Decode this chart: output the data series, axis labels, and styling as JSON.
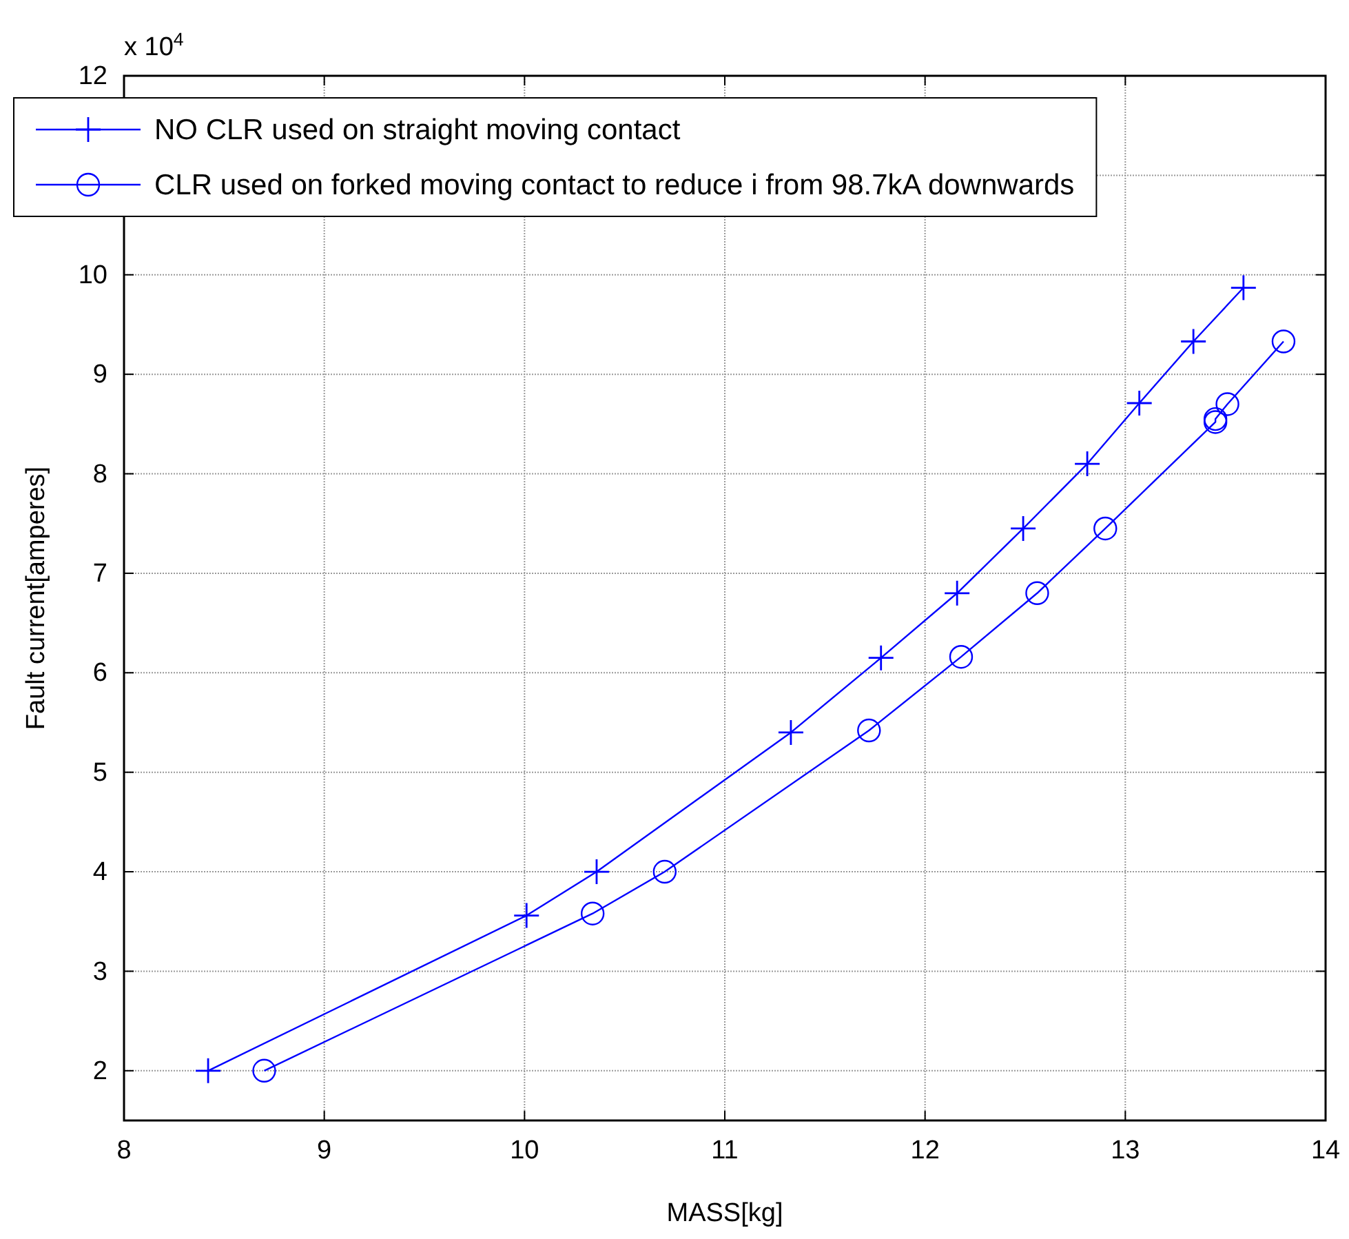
{
  "chart_data": {
    "type": "line",
    "xlabel": "MASS[kg]",
    "ylabel": "Fault current[amperes]",
    "annotations": [
      "x 10$^{4}$"
    ],
    "xlim": [
      8,
      14
    ],
    "xticks": [
      8,
      9,
      10,
      11,
      12,
      13,
      14
    ],
    "ylim": [
      1.5,
      12
    ],
    "yticks": [
      2,
      3,
      4,
      5,
      6,
      7,
      8,
      9,
      10,
      {
        "value": 11,
        "label": null
      },
      12
    ],
    "grid": true,
    "legend": "top left",
    "line_style": "solid",
    "series": [
      {
        "name": "NO CLR used on straight moving contact",
        "color": "#0000ff",
        "marker": "cross",
        "x": [
          8.42,
          10.01,
          10.36,
          11.33,
          11.78,
          12.16,
          12.49,
          12.81,
          13.07,
          13.34,
          13.59
        ],
        "values": [
          2.0,
          3.56,
          4.0,
          5.4,
          6.15,
          6.8,
          7.45,
          8.1,
          8.71,
          9.33,
          9.87
        ]
      },
      {
        "name": "CLR used on forked moving contact to reduce i from 98.7kA downwards",
        "color": "#0000ff",
        "marker": "circle",
        "x": [
          8.7,
          10.34,
          10.7,
          11.72,
          12.18,
          12.56,
          12.9,
          13.45,
          13.45,
          13.51,
          13.79
        ],
        "values": [
          2.0,
          3.58,
          4.0,
          5.42,
          6.16,
          6.8,
          7.45,
          8.52,
          8.55,
          8.7,
          9.33
        ]
      }
    ]
  }
}
